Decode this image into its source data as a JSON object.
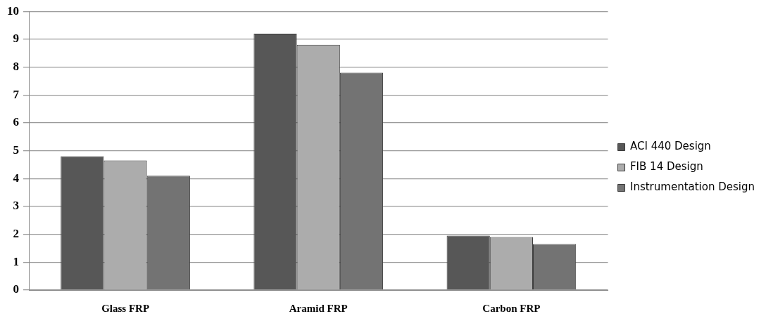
{
  "chart_data": {
    "type": "bar",
    "categories": [
      "Glass FRP",
      "Aramid FRP",
      "Carbon FRP"
    ],
    "series": [
      {
        "name": "ACI 440 Design",
        "color": "#575757",
        "values": [
          4.8,
          9.2,
          1.95
        ]
      },
      {
        "name": "FIB 14 Design",
        "color": "#acacac",
        "values": [
          4.65,
          8.8,
          1.9
        ]
      },
      {
        "name": "Instrumentation Design",
        "color": "#737373",
        "values": [
          4.1,
          7.8,
          1.65
        ]
      }
    ],
    "ylim": [
      0,
      10
    ],
    "yticks": [
      0,
      1,
      2,
      3,
      4,
      5,
      6,
      7,
      8,
      9,
      10
    ],
    "grid": "y",
    "legend": "right"
  }
}
